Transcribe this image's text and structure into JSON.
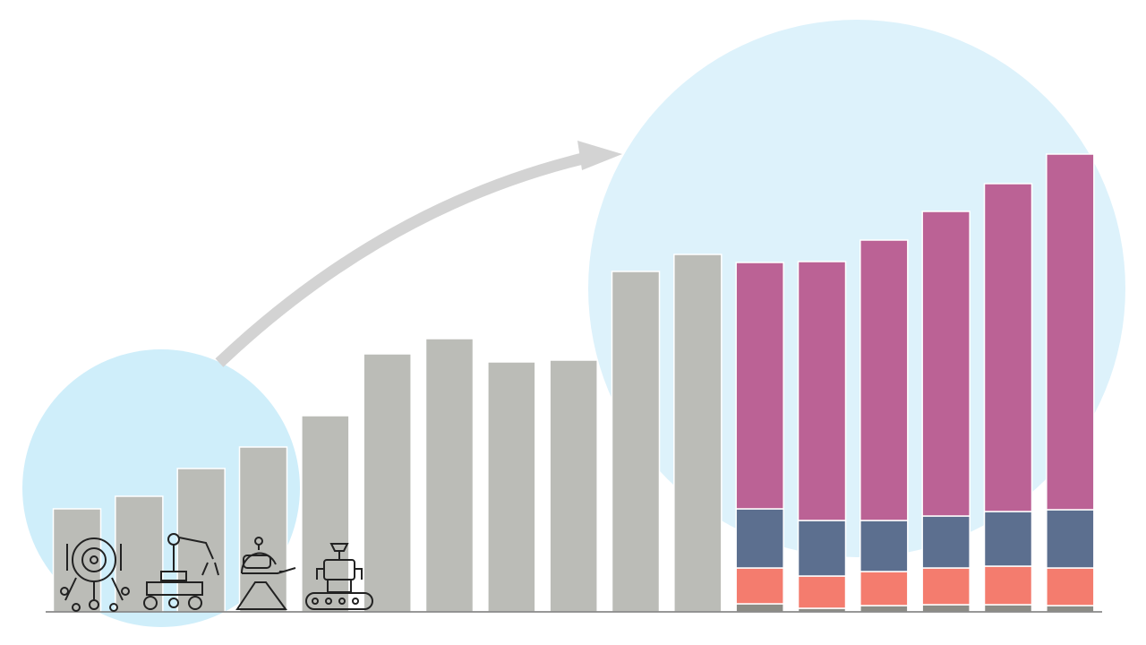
{
  "chart_data": {
    "type": "stacked-bar",
    "categories": [
      null,
      null,
      null,
      null,
      null,
      null,
      null,
      null,
      null,
      null,
      null,
      null,
      null,
      null,
      null,
      null,
      null
    ],
    "series": [
      {
        "color": "#bbbcb7",
        "values": [
          115,
          129,
          160,
          184,
          219,
          288,
          305,
          279,
          281,
          380,
          399,
          null,
          null,
          null,
          null,
          null,
          null
        ]
      },
      {
        "color": "#8c8c86",
        "values": [
          null,
          null,
          null,
          null,
          null,
          null,
          null,
          null,
          null,
          null,
          null,
          9,
          4,
          7,
          8,
          8,
          7
        ]
      },
      {
        "color": "#f47c6e",
        "values": [
          null,
          null,
          null,
          null,
          null,
          null,
          null,
          null,
          null,
          null,
          null,
          40,
          36,
          38,
          41,
          43,
          42
        ]
      },
      {
        "color": "#5c6f8f",
        "values": [
          null,
          null,
          null,
          null,
          null,
          null,
          null,
          null,
          null,
          null,
          null,
          66,
          62,
          57,
          58,
          61,
          65
        ]
      },
      {
        "color": "#bb6295",
        "values": [
          null,
          null,
          null,
          null,
          null,
          null,
          null,
          null,
          null,
          null,
          null,
          275,
          289,
          313,
          340,
          366,
          397
        ]
      }
    ],
    "ylim": [
      0,
      520
    ],
    "grid": false
  }
}
